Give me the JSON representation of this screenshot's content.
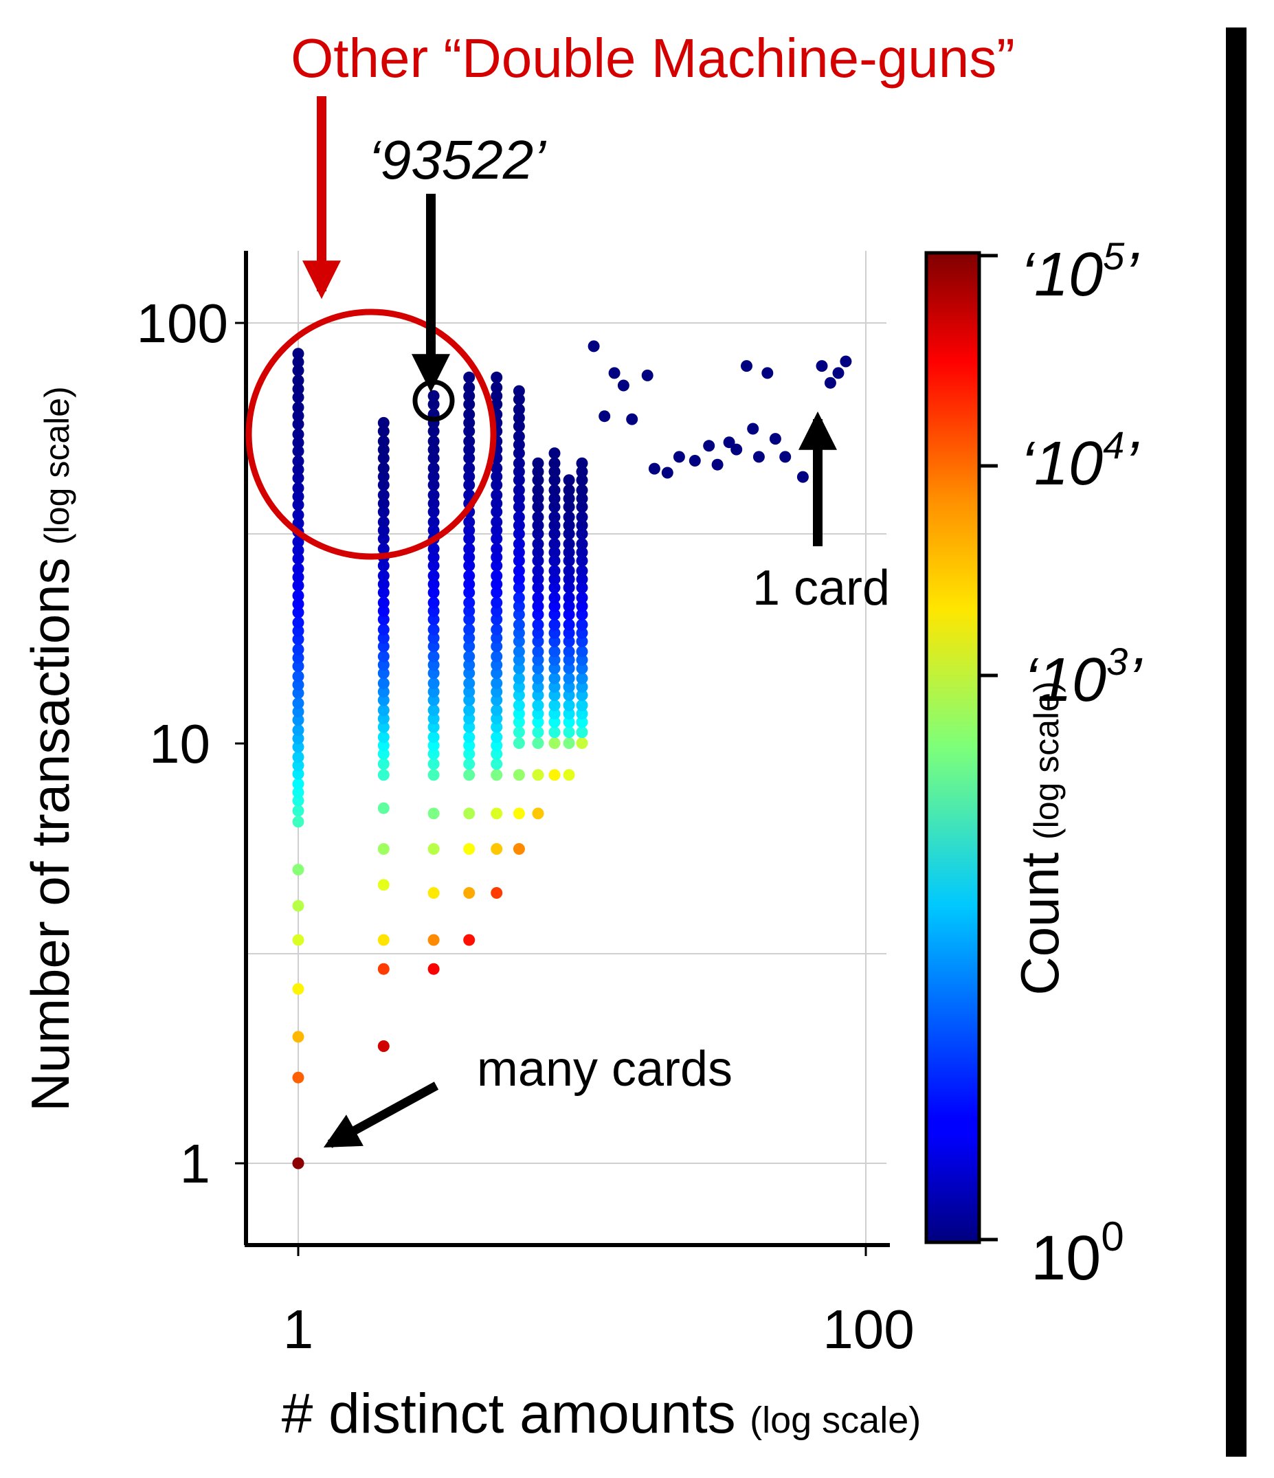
{
  "annotations": {
    "title_red": "Other “Double Machine-guns”",
    "id_label": "‘93522’",
    "one_card": "1 card",
    "many_cards": "many cards",
    "highlight_color": "#d40000"
  },
  "axes": {
    "ylabel_main": "Number of transactions",
    "ylabel_sub": "(log scale)",
    "xlabel_main": "# distinct amounts",
    "xlabel_sub": "(log scale)",
    "x_ticks": [
      "1",
      "100"
    ],
    "y_ticks": [
      "1",
      "10",
      "100"
    ]
  },
  "colorbar": {
    "label_main": "Count",
    "label_sub": "(log scale)",
    "ticks": [
      "10",
      "‘10",
      "‘10",
      "‘10"
    ],
    "tick_exponents": [
      "0",
      "3",
      "4",
      "5"
    ],
    "closing_quote": "’",
    "colormap": "jet",
    "range": [
      1,
      100000
    ]
  },
  "chart_data": {
    "type": "scatter",
    "x_scale": "log",
    "y_scale": "log",
    "xlim": [
      0.82,
      104
    ],
    "ylim": [
      0.72,
      145
    ],
    "x_ticks": [
      1,
      100
    ],
    "y_ticks": [
      1,
      10,
      100
    ],
    "grid": true,
    "color_scale": "log",
    "color_range": [
      1,
      100000
    ],
    "columns": [
      {
        "x": 1,
        "y_min": 1,
        "y_max": 85,
        "colored": [
          [
            1,
            70000
          ],
          [
            1.6,
            8000
          ],
          [
            2,
            3000
          ],
          [
            2.6,
            1500
          ],
          [
            3.4,
            900
          ],
          [
            4.1,
            600
          ],
          [
            5,
            350
          ],
          [
            6.5,
            150
          ]
        ]
      },
      {
        "x": 2,
        "y_min": 1.9,
        "y_max": 58,
        "colored": [
          [
            1.9,
            40000
          ],
          [
            2.9,
            12000
          ],
          [
            3.4,
            1800
          ],
          [
            4.6,
            1000
          ],
          [
            5.6,
            450
          ],
          [
            7,
            220
          ],
          [
            8.4,
            130
          ]
        ]
      },
      {
        "x": 3,
        "y_min": 2.9,
        "y_max": 68,
        "colored": [
          [
            2.9,
            25000
          ],
          [
            3.4,
            5000
          ],
          [
            4.4,
            1700
          ],
          [
            5.6,
            600
          ],
          [
            6.8,
            300
          ],
          [
            8.4,
            160
          ]
        ]
      },
      {
        "x": 4,
        "y_min": 3.4,
        "y_max": 77,
        "colored": [
          [
            3.4,
            20000
          ],
          [
            4.4,
            3500
          ],
          [
            5.6,
            1300
          ],
          [
            6.8,
            550
          ],
          [
            8.4,
            220
          ]
        ]
      },
      {
        "x": 5,
        "y_min": 4.4,
        "y_max": 76,
        "colored": [
          [
            4.4,
            12000
          ],
          [
            5.6,
            2500
          ],
          [
            6.8,
            900
          ],
          [
            8.4,
            300
          ]
        ]
      },
      {
        "x": 6,
        "y_min": 5.6,
        "y_max": 71,
        "colored": [
          [
            5.6,
            5000
          ],
          [
            6.8,
            1400
          ],
          [
            8.4,
            400
          ],
          [
            10,
            150
          ]
        ]
      },
      {
        "x": 7,
        "y_min": 6.8,
        "y_max": 48,
        "colored": [
          [
            6.8,
            2500
          ],
          [
            8.4,
            800
          ],
          [
            10,
            200
          ]
        ]
      },
      {
        "x": 8,
        "y_min": 8.4,
        "y_max": 49,
        "colored": [
          [
            8.4,
            1500
          ],
          [
            10,
            450
          ]
        ]
      },
      {
        "x": 9,
        "y_min": 8.4,
        "y_max": 44,
        "colored": [
          [
            8.4,
            1000
          ],
          [
            10,
            300
          ]
        ]
      },
      {
        "x": 10,
        "y_min": 10,
        "y_max": 48,
        "colored": [
          [
            10,
            700
          ]
        ]
      }
    ],
    "sparse_points": [
      [
        11,
        88
      ],
      [
        12,
        60
      ],
      [
        13,
        76
      ],
      [
        14,
        71
      ],
      [
        15,
        59
      ],
      [
        17,
        75
      ],
      [
        18,
        45
      ],
      [
        20,
        44
      ],
      [
        22,
        48
      ],
      [
        25,
        47
      ],
      [
        28,
        51
      ],
      [
        30,
        46
      ],
      [
        33,
        52
      ],
      [
        35,
        50
      ],
      [
        38,
        79
      ],
      [
        40,
        56
      ],
      [
        42,
        48
      ],
      [
        45,
        76
      ],
      [
        48,
        53
      ],
      [
        52,
        48
      ],
      [
        60,
        43
      ],
      [
        70,
        79
      ],
      [
        75,
        72
      ],
      [
        80,
        76
      ],
      [
        85,
        81
      ]
    ],
    "highlighted_point": {
      "label": "93522",
      "x": 3,
      "y": 70
    },
    "one_card_point": {
      "x": 80,
      "y": 76
    },
    "many_cards_point": {
      "x": 1,
      "y": 1
    }
  }
}
